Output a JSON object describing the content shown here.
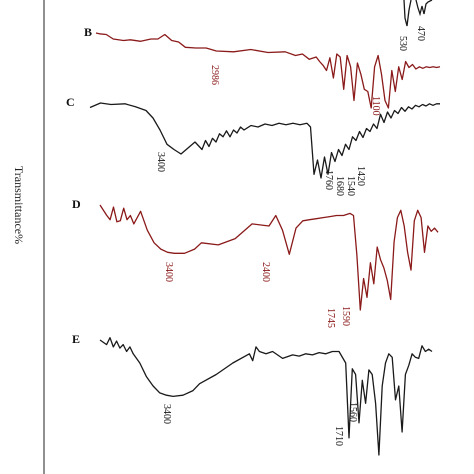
{
  "chart_data": {
    "type": "line",
    "ylabel": "Transmittance%",
    "series": [
      {
        "name": "B",
        "color": "#8b1a1a",
        "x": [
          0,
          1,
          3,
          5,
          8,
          10,
          13,
          16,
          18,
          20,
          22,
          24,
          26,
          29,
          32,
          35,
          40,
          45,
          50,
          55,
          58,
          60,
          62,
          64,
          65,
          66,
          67,
          68,
          69,
          70,
          71,
          72,
          73,
          74,
          75,
          76,
          77,
          78,
          79,
          80,
          81,
          82,
          83,
          84,
          85,
          86,
          87,
          88,
          89,
          90,
          91,
          92,
          93,
          94,
          95,
          96,
          97,
          98,
          99,
          100
        ],
        "y": [
          0.0,
          -0.01,
          -0.02,
          -0.08,
          -0.1,
          -0.09,
          -0.11,
          -0.08,
          -0.08,
          -0.02,
          -0.1,
          -0.12,
          -0.19,
          -0.2,
          -0.2,
          -0.24,
          -0.25,
          -0.22,
          -0.26,
          -0.25,
          -0.3,
          -0.28,
          -0.35,
          -0.32,
          -0.38,
          -0.43,
          -0.5,
          -0.33,
          -0.6,
          -0.28,
          -0.32,
          -0.75,
          -0.3,
          -0.45,
          -0.9,
          -0.4,
          -0.55,
          -0.75,
          -0.78,
          -1.0,
          -0.45,
          -0.3,
          -0.55,
          -0.9,
          -1.0,
          -0.5,
          -0.78,
          -0.45,
          -0.62,
          -0.38,
          -0.46,
          -0.42,
          -0.48,
          -0.45,
          -0.47,
          -0.45,
          -0.46,
          -0.45,
          -0.46,
          -0.45
        ]
      },
      {
        "name": "C",
        "color": "#1a1a1a",
        "x": [
          0,
          3,
          6,
          10,
          13,
          16,
          18,
          20,
          22,
          24,
          26,
          28,
          30,
          32,
          33,
          34,
          35,
          36,
          37,
          38,
          39,
          40,
          41,
          42,
          43,
          44,
          46,
          48,
          50,
          52,
          54,
          56,
          58,
          60,
          62,
          63,
          64,
          65,
          66,
          67,
          68,
          69,
          70,
          71,
          72,
          73,
          74,
          75,
          76,
          77,
          78,
          79,
          80,
          81,
          82,
          83,
          84,
          85,
          86,
          87,
          88,
          89,
          90,
          91,
          92,
          93,
          94,
          95,
          96,
          97,
          98,
          99,
          100
        ],
        "y": [
          -0.06,
          0.0,
          -0.02,
          -0.01,
          -0.05,
          -0.1,
          -0.2,
          -0.36,
          -0.55,
          -0.62,
          -0.68,
          -0.6,
          -0.52,
          -0.62,
          -0.5,
          -0.58,
          -0.47,
          -0.52,
          -0.41,
          -0.45,
          -0.37,
          -0.45,
          -0.36,
          -0.4,
          -0.32,
          -0.36,
          -0.3,
          -0.32,
          -0.28,
          -0.3,
          -0.27,
          -0.29,
          -0.27,
          -0.29,
          -0.27,
          -0.32,
          -0.95,
          -0.76,
          -1.0,
          -0.72,
          -0.95,
          -0.66,
          -0.78,
          -0.62,
          -0.7,
          -0.55,
          -0.62,
          -0.45,
          -0.5,
          -0.38,
          -0.46,
          -0.34,
          -0.38,
          -0.28,
          -0.34,
          -0.15,
          -0.26,
          -0.12,
          -0.2,
          -0.1,
          -0.14,
          -0.06,
          -0.11,
          -0.05,
          -0.08,
          -0.03,
          -0.05,
          -0.02,
          -0.04,
          -0.01,
          -0.03,
          -0.01,
          -0.01
        ]
      },
      {
        "name": "D",
        "color": "#8b1a1a",
        "x": [
          0,
          2,
          3,
          4,
          5,
          6,
          7,
          8,
          9,
          10,
          12,
          14,
          16,
          18,
          20,
          22,
          25,
          28,
          30,
          35,
          40,
          45,
          50,
          52,
          54,
          56,
          58,
          60,
          62,
          64,
          66,
          68,
          70,
          72,
          74,
          75,
          76,
          77,
          78,
          79,
          80,
          81,
          82,
          83,
          84,
          85,
          86,
          87,
          88,
          89,
          90,
          91,
          92,
          93,
          94,
          95,
          96,
          97,
          98,
          99,
          100
        ],
        "y": [
          0.0,
          -0.1,
          -0.14,
          -0.02,
          -0.16,
          -0.15,
          -0.03,
          -0.14,
          -0.1,
          -0.18,
          -0.06,
          -0.24,
          -0.36,
          -0.42,
          -0.45,
          -0.46,
          -0.46,
          -0.42,
          -0.36,
          -0.38,
          -0.32,
          -0.18,
          -0.2,
          -0.1,
          -0.24,
          -0.47,
          -0.22,
          -0.15,
          -0.14,
          -0.13,
          -0.12,
          -0.11,
          -0.1,
          -0.1,
          -0.08,
          -0.1,
          -0.48,
          -1.0,
          -0.7,
          -0.88,
          -0.55,
          -0.75,
          -0.4,
          -0.52,
          -0.6,
          -0.72,
          -0.9,
          -0.35,
          -0.12,
          -0.05,
          -0.2,
          -0.45,
          -0.62,
          -0.15,
          -0.05,
          -0.12,
          -0.45,
          -0.2,
          -0.25,
          -0.22,
          -0.26
        ]
      },
      {
        "name": "E",
        "color": "#1a1a1a",
        "x": [
          0,
          2,
          3,
          4,
          5,
          6,
          7,
          8,
          9,
          10,
          12,
          14,
          16,
          18,
          20,
          22,
          25,
          28,
          30,
          35,
          40,
          45,
          46,
          47,
          48,
          50,
          52,
          55,
          58,
          60,
          62,
          64,
          66,
          68,
          70,
          72,
          74,
          75,
          76,
          77,
          78,
          79,
          80,
          81,
          82,
          83,
          84,
          85,
          86,
          87,
          88,
          89,
          90,
          91,
          92,
          93,
          94,
          95,
          96,
          97,
          98,
          99,
          100
        ],
        "y": [
          0.0,
          -0.04,
          0.02,
          -0.06,
          -0.01,
          -0.07,
          -0.04,
          -0.1,
          -0.06,
          -0.12,
          -0.2,
          -0.32,
          -0.4,
          -0.46,
          -0.48,
          -0.49,
          -0.48,
          -0.44,
          -0.38,
          -0.3,
          -0.2,
          -0.12,
          -0.18,
          -0.06,
          -0.1,
          -0.12,
          -0.1,
          -0.16,
          -0.13,
          -0.14,
          -0.12,
          -0.13,
          -0.11,
          -0.12,
          -0.1,
          -0.1,
          -0.2,
          -0.85,
          -0.25,
          -0.3,
          -0.72,
          -0.35,
          -0.55,
          -0.26,
          -0.3,
          -0.55,
          -1.0,
          -0.4,
          -0.2,
          -0.12,
          -0.15,
          -0.52,
          -0.4,
          -0.8,
          -0.3,
          -0.22,
          -0.12,
          -0.15,
          -0.16,
          -0.05,
          -0.1,
          -0.08,
          -0.1
        ]
      }
    ],
    "annotations": [
      {
        "series": "A",
        "text": "530",
        "color": "#1a1a1a"
      },
      {
        "series": "A",
        "text": "470",
        "color": "#1a1a1a"
      },
      {
        "series": "B",
        "text": "2986",
        "color": "#8b1a1a"
      },
      {
        "series": "B",
        "text": "1100",
        "color": "#8b1a1a"
      },
      {
        "series": "C",
        "text": "3400",
        "color": "#1a1a1a"
      },
      {
        "series": "C",
        "text": "1760",
        "color": "#1a1a1a"
      },
      {
        "series": "C",
        "text": "1680",
        "color": "#1a1a1a"
      },
      {
        "series": "C",
        "text": "1540",
        "color": "#1a1a1a"
      },
      {
        "series": "C",
        "text": "1420",
        "color": "#1a1a1a"
      },
      {
        "series": "D",
        "text": "3400",
        "color": "#8b1a1a"
      },
      {
        "series": "D",
        "text": "2400",
        "color": "#8b1a1a"
      },
      {
        "series": "D",
        "text": "1745",
        "color": "#8b1a1a"
      },
      {
        "series": "D",
        "text": "1590",
        "color": "#8b1a1a"
      },
      {
        "series": "E",
        "text": "3400",
        "color": "#1a1a1a"
      },
      {
        "series": "E",
        "text": "1710",
        "color": "#1a1a1a"
      },
      {
        "series": "E",
        "text": "1560",
        "color": "#1a1a1a"
      }
    ]
  }
}
